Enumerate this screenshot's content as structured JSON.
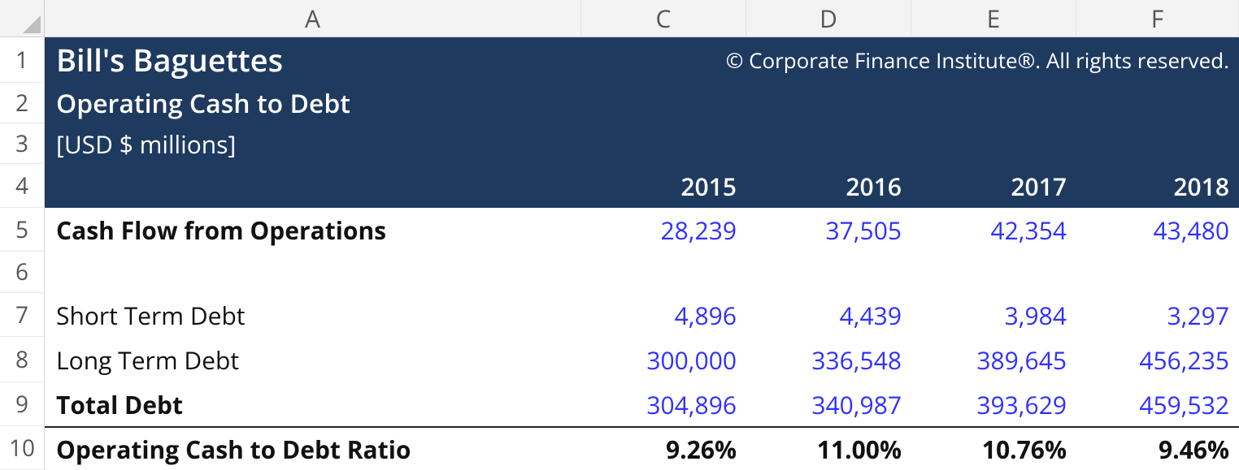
{
  "columns": {
    "A": "A",
    "C": "C",
    "D": "D",
    "E": "E",
    "F": "F"
  },
  "row_numbers": [
    "1",
    "2",
    "3",
    "4",
    "5",
    "6",
    "7",
    "8",
    "9",
    "10"
  ],
  "header": {
    "company": "Bill's Baguettes",
    "subtitle": "Operating Cash to Debt",
    "units": "[USD $ millions]",
    "copyright": "© Corporate Finance Institute®. All rights reserved."
  },
  "years": [
    "2015",
    "2016",
    "2017",
    "2018"
  ],
  "rows": {
    "cffo": {
      "label": "Cash Flow from Operations",
      "bold": true,
      "values": [
        "28,239",
        "37,505",
        "42,354",
        "43,480"
      ]
    },
    "st_debt": {
      "label": "Short Term Debt",
      "bold": false,
      "values": [
        "4,896",
        "4,439",
        "3,984",
        "3,297"
      ]
    },
    "lt_debt": {
      "label": "Long Term Debt",
      "bold": false,
      "values": [
        "300,000",
        "336,548",
        "389,645",
        "456,235"
      ]
    },
    "total_debt": {
      "label": "Total Debt",
      "bold": true,
      "values": [
        "304,896",
        "340,987",
        "393,629",
        "459,532"
      ]
    },
    "ratio": {
      "label": "Operating Cash to Debt Ratio",
      "bold": true,
      "values": [
        "9.26%",
        "11.00%",
        "10.76%",
        "9.46%"
      ]
    }
  },
  "colors": {
    "header_bg": "#1f3a5f",
    "header_fg": "#ffffff",
    "number_fg": "#3030ff",
    "ratio_fg": "#111111",
    "grid_line": "#d9d9d9"
  }
}
